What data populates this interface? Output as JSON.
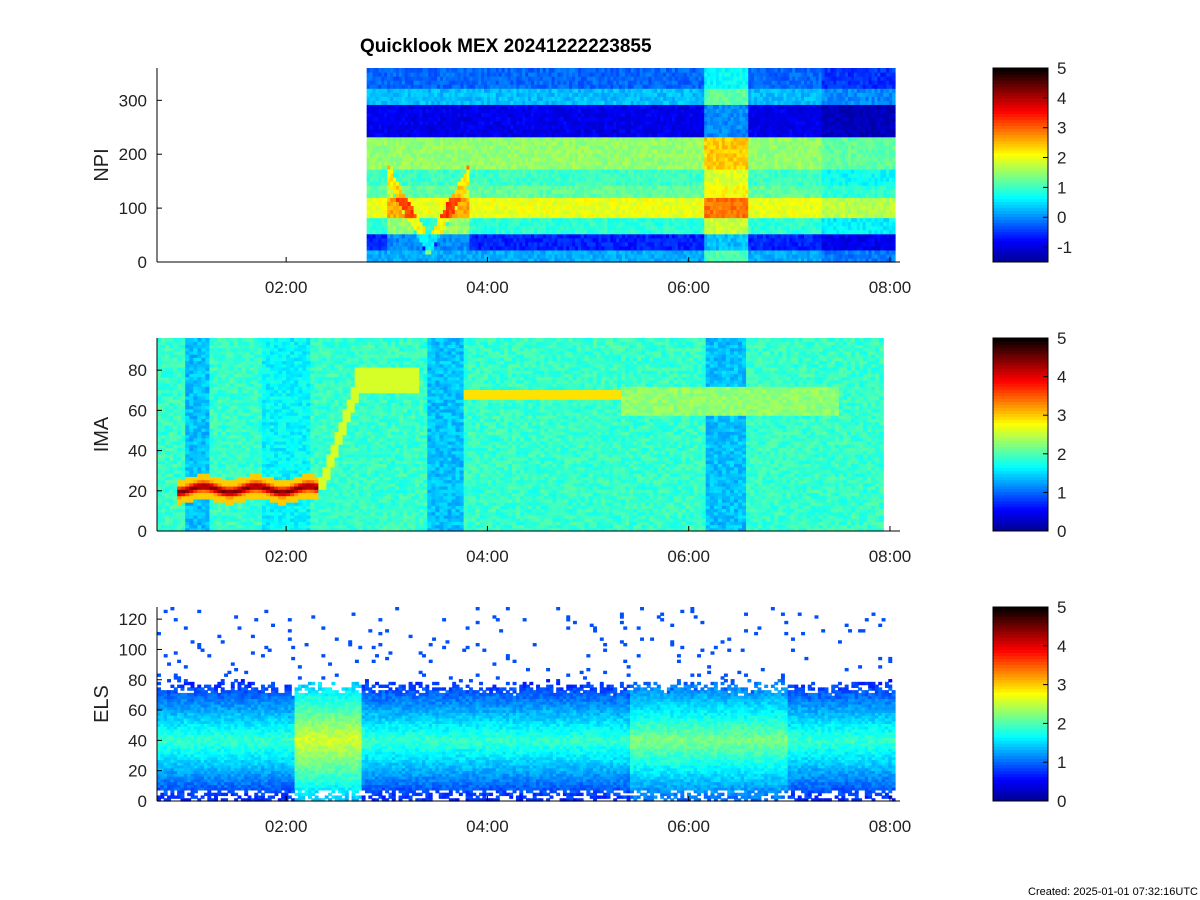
{
  "figure": {
    "title": "Quicklook MEX 20241222223855",
    "created": "Created: 2025-01-01 07:32:16UTC"
  },
  "colors": {
    "colormap": [
      "#00008f",
      "#0000ff",
      "#0080ff",
      "#00ffff",
      "#80ff80",
      "#ffff00",
      "#ff8000",
      "#ff0000",
      "#800000",
      "#000000"
    ],
    "axis": "#000000",
    "background": "#ffffff"
  },
  "chart_data": [
    {
      "type": "heatmap",
      "ylabel": "NPI",
      "xlim": [
        "00:43",
        "08:03"
      ],
      "ylim": [
        0,
        360
      ],
      "xticks": [
        "02:00",
        "04:00",
        "06:00",
        "08:00"
      ],
      "yticks": [
        0,
        100,
        200,
        300
      ],
      "data_x_range": [
        "02:48",
        "08:03"
      ],
      "colorbar": {
        "range": [
          -1.5,
          5
        ],
        "ticks": [
          -1,
          0,
          1,
          2,
          3,
          4,
          5
        ]
      },
      "grid": false
    },
    {
      "type": "heatmap",
      "ylabel": "IMA",
      "xlim": [
        "00:43",
        "08:03"
      ],
      "ylim": [
        0,
        96
      ],
      "xticks": [
        "02:00",
        "04:00",
        "06:00",
        "08:00"
      ],
      "yticks": [
        0,
        20,
        40,
        60,
        80
      ],
      "data_x_range": [
        "00:43",
        "07:56"
      ],
      "colorbar": {
        "range": [
          0,
          5
        ],
        "ticks": [
          0,
          1,
          2,
          3,
          4,
          5
        ]
      },
      "grid": false
    },
    {
      "type": "heatmap",
      "ylabel": "ELS",
      "xlim": [
        "00:43",
        "08:03"
      ],
      "ylim": [
        0,
        128
      ],
      "xticks": [
        "02:00",
        "04:00",
        "06:00",
        "08:00"
      ],
      "yticks": [
        0,
        20,
        40,
        60,
        80,
        100,
        120
      ],
      "data_x_range": [
        "00:43",
        "08:03"
      ],
      "colorbar": {
        "range": [
          0,
          5
        ],
        "ticks": [
          0,
          1,
          2,
          3,
          4,
          5
        ]
      },
      "grid": false
    }
  ]
}
